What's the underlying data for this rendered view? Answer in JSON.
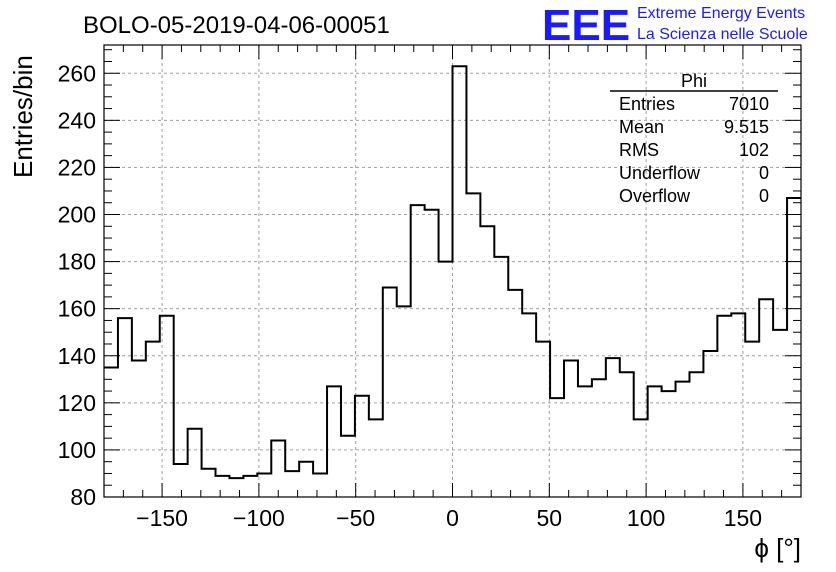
{
  "chart_data": {
    "type": "bar",
    "title": "BOLO-05-2019-04-06-00051",
    "xlabel": "ϕ [°]",
    "ylabel": "Entries/bin",
    "xlim": [
      -180,
      180
    ],
    "ylim": [
      80,
      272
    ],
    "x_ticks": [
      -150,
      -100,
      -50,
      0,
      50,
      100,
      150
    ],
    "x_tick_labels": [
      "−150",
      "−100",
      "−50",
      "0",
      "50",
      "100",
      "150"
    ],
    "y_ticks": [
      80,
      100,
      120,
      140,
      160,
      180,
      200,
      220,
      240,
      260
    ],
    "y_tick_labels": [
      "80",
      "100",
      "120",
      "140",
      "160",
      "180",
      "200",
      "220",
      "240",
      "260"
    ],
    "grid": true,
    "bin_width": 7.2,
    "bin_low_edges": [
      -180,
      -172.8,
      -165.6,
      -158.4,
      -151.2,
      -144,
      -136.8,
      -129.6,
      -122.4,
      -115.2,
      -108,
      -100.8,
      -93.6,
      -86.4,
      -79.2,
      -72,
      -64.8,
      -57.6,
      -50.4,
      -43.2,
      -36,
      -28.8,
      -21.6,
      -14.4,
      -7.2,
      0,
      7.2,
      14.4,
      21.6,
      28.8,
      36,
      43.2,
      50.4,
      57.6,
      64.8,
      72,
      79.2,
      86.4,
      93.6,
      100.8,
      108,
      115.2,
      122.4,
      129.6,
      136.8,
      144,
      151.2,
      158.4,
      165.6,
      172.8
    ],
    "values": [
      135,
      156,
      138,
      146,
      157,
      94,
      109,
      92,
      89,
      88,
      89,
      90,
      104,
      91,
      95,
      90,
      127,
      106,
      123,
      113,
      169,
      161,
      204,
      202,
      180,
      263,
      209,
      195,
      182,
      168,
      158,
      146,
      122,
      138,
      127,
      130,
      139,
      133,
      113,
      127,
      125,
      129,
      133,
      142,
      157,
      158,
      146,
      164,
      151,
      207
    ],
    "stats_box": {
      "name": "Phi",
      "rows": [
        {
          "label": "Entries",
          "value": "7010"
        },
        {
          "label": "Mean",
          "value": "9.515"
        },
        {
          "label": "RMS",
          "value": "102"
        },
        {
          "label": "Underflow",
          "value": "0"
        },
        {
          "label": "Overflow",
          "value": "0"
        }
      ],
      "placement": "top-right"
    }
  },
  "logo": {
    "mark": "EEE",
    "line1": "Extreme Energy Events",
    "line2": "La Scienza nelle Scuole",
    "color": "#1a1aff"
  }
}
